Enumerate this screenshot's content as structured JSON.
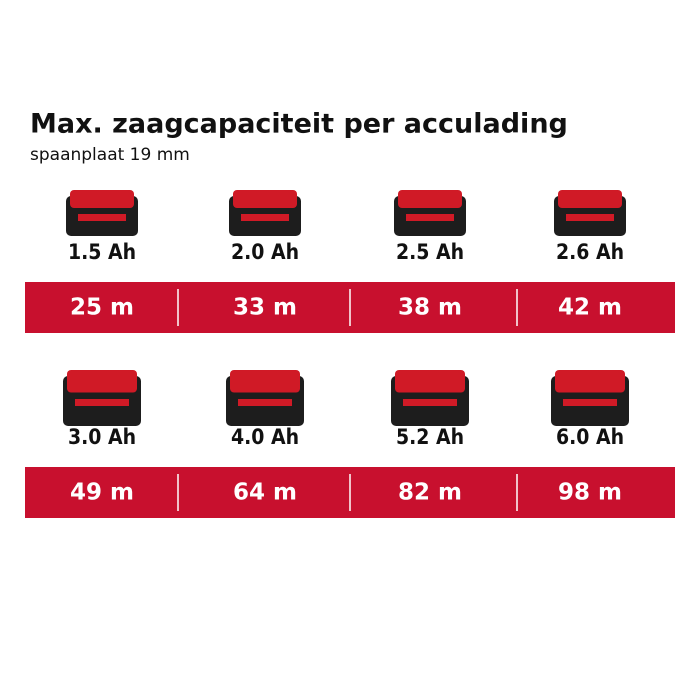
{
  "header": {
    "title": "Max. zaagcapaciteit per acculading",
    "subtitle": "spaanplaat 19 mm"
  },
  "rows": [
    {
      "items": [
        {
          "capacity": "1.5 Ah",
          "distance": "25 m"
        },
        {
          "capacity": "2.0 Ah",
          "distance": "33 m"
        },
        {
          "capacity": "2.5 Ah",
          "distance": "38 m"
        },
        {
          "capacity": "2.6 Ah",
          "distance": "42 m"
        }
      ]
    },
    {
      "items": [
        {
          "capacity": "3.0 Ah",
          "distance": "49 m"
        },
        {
          "capacity": "4.0 Ah",
          "distance": "64 m"
        },
        {
          "capacity": "5.2 Ah",
          "distance": "82 m"
        },
        {
          "capacity": "6.0 Ah",
          "distance": "98 m"
        }
      ]
    }
  ]
}
